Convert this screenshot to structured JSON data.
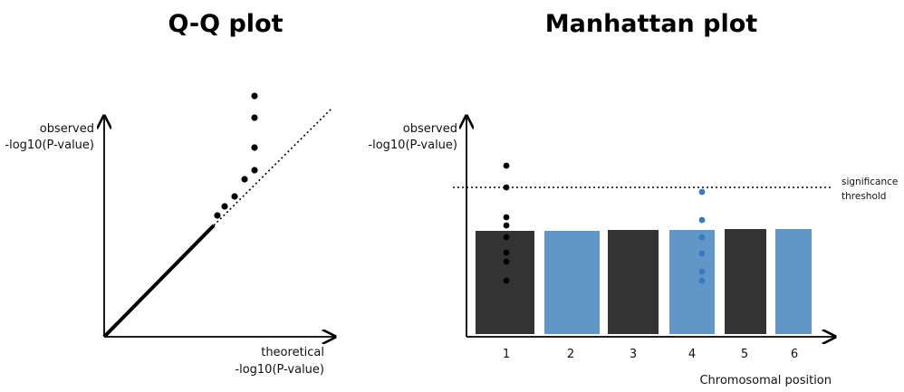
{
  "qq": {
    "title": "Q-Q plot",
    "y_label_line1": "observed",
    "y_label_line2": "-log10(P-value)",
    "x_label_line1": "theoretical",
    "x_label_line2": "-log10(P-value)"
  },
  "manhattan": {
    "title": "Manhattan plot",
    "y_label_line1": "observed",
    "y_label_line2": "-log10(P-value)",
    "x_label": "Chromosomal position",
    "threshold_label_line1": "significance",
    "threshold_label_line2": "threshold",
    "chromosomes": [
      "1",
      "2",
      "3",
      "4",
      "5",
      "6"
    ]
  },
  "colors": {
    "dark": "#333333",
    "blue": "#6096c8",
    "blue_dot": "#3a78c0",
    "axis": "#000000"
  }
}
